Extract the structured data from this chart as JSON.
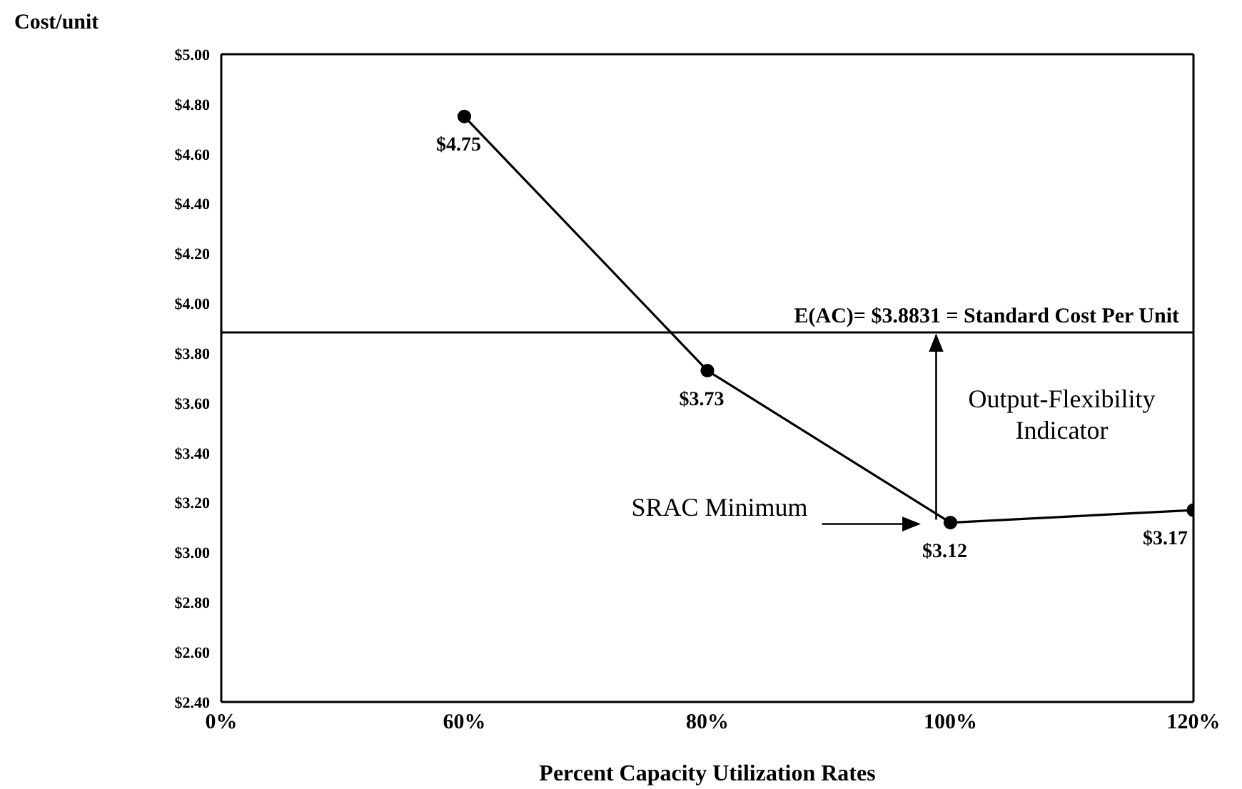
{
  "chart_data": {
    "type": "line",
    "ylabel": "Cost/unit",
    "xlabel": "Percent Capacity Utilization Rates",
    "categories": [
      "0%",
      "60%",
      "80%",
      "100%",
      "120%"
    ],
    "values": [
      null,
      4.75,
      3.73,
      3.12,
      3.17
    ],
    "value_labels": [
      null,
      "$4.75",
      "$3.73",
      "$3.12",
      "$3.17"
    ],
    "color": "#000000",
    "marker": "circle",
    "line_style": "solid",
    "ylim": [
      2.4,
      5.0
    ],
    "yticks": [
      {
        "value": 2.4,
        "label": "$2.40"
      },
      {
        "value": 2.6,
        "label": "$2.60"
      },
      {
        "value": 2.8,
        "label": "$2.80"
      },
      {
        "value": 3.0,
        "label": "$3.00"
      },
      {
        "value": 3.2,
        "label": "$3.20"
      },
      {
        "value": 3.4,
        "label": "$3.40"
      },
      {
        "value": 3.6,
        "label": "$3.60"
      },
      {
        "value": 3.8,
        "label": "$3.80"
      },
      {
        "value": 4.0,
        "label": "$4.00"
      },
      {
        "value": 4.2,
        "label": "$4.20"
      },
      {
        "value": 4.4,
        "label": "$4.40"
      },
      {
        "value": 4.6,
        "label": "$4.60"
      },
      {
        "value": 4.8,
        "label": "$4.80"
      },
      {
        "value": 5.0,
        "label": "$5.00"
      }
    ],
    "ref_lines": [
      {
        "axis": "y",
        "value": 3.8831,
        "label": "E(AC)= $3.8831 = Standard Cost Per Unit"
      }
    ],
    "annotations": [
      "SRAC Minimum",
      "Output-Flexibility Indicator"
    ]
  }
}
